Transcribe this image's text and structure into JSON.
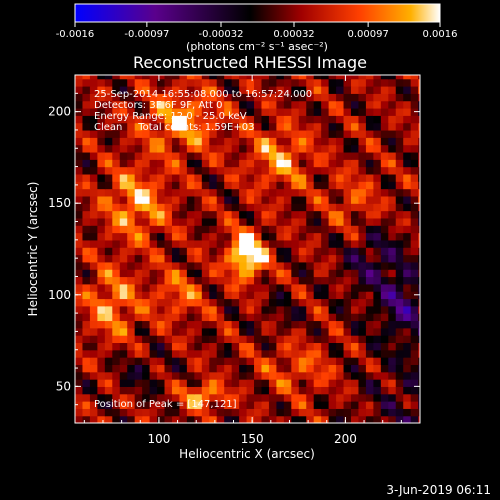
{
  "chart_data": {
    "type": "heatmap",
    "title": "Reconstructed RHESSI Image",
    "xlabel": "Heliocentric X (arcsec)",
    "ylabel": "Heliocentric Y (arcsec)",
    "xlim": [
      55,
      240
    ],
    "ylim": [
      30,
      220
    ],
    "x_ticks": [
      "100",
      "150",
      "200"
    ],
    "x_tick_values": [
      100,
      150,
      200
    ],
    "y_ticks": [
      "50",
      "100",
      "150",
      "200"
    ],
    "y_tick_values": [
      50,
      100,
      150,
      200
    ],
    "colorbar": {
      "ticks": [
        "-0.0016",
        "-0.00097",
        "-0.00032",
        "0.00032",
        "0.00097",
        "0.0016"
      ],
      "tick_values": [
        -0.0016,
        -0.00097,
        -0.00032,
        0.00032,
        0.00097,
        0.0016
      ],
      "range": [
        -0.0016,
        0.0016
      ],
      "units_label": "(photons cm⁻² s⁻¹ asec⁻²)",
      "colors": [
        "#0000ff",
        "#5a008c",
        "#000000",
        "#a00000",
        "#ff4000",
        "#ffb000",
        "#ffffff"
      ]
    },
    "annotations": [
      "25-Sep-2014 16:55:08.000 to 16:57:24.000",
      "Detectors: 3F 6F 9F, Att 0",
      "Energy Range: 12.0 - 25.0 keV",
      "Clean     Total counts: 1.59E+03"
    ],
    "peak_text": "Position of Peak = [147,121]",
    "peak": [
      147,
      121
    ],
    "sources": [
      {
        "x": 147,
        "y": 122,
        "amp": 0.0016,
        "sx": 7,
        "sy": 9
      },
      {
        "x": 124,
        "y": 45,
        "amp": 0.001,
        "sx": 8,
        "sy": 5
      },
      {
        "x": 88,
        "y": 150,
        "amp": 0.0009,
        "sx": 12,
        "sy": 14
      },
      {
        "x": 112,
        "y": 195,
        "amp": 0.0009,
        "sx": 14,
        "sy": 12
      },
      {
        "x": 165,
        "y": 175,
        "amp": 0.0008,
        "sx": 12,
        "sy": 12
      },
      {
        "x": 75,
        "y": 95,
        "amp": 0.0008,
        "sx": 10,
        "sy": 14
      },
      {
        "x": 110,
        "y": 100,
        "amp": 0.0006,
        "sx": 10,
        "sy": 10
      },
      {
        "x": 175,
        "y": 60,
        "amp": 0.0005,
        "sx": 14,
        "sy": 10
      },
      {
        "x": 205,
        "y": 150,
        "amp": 0.0005,
        "sx": 10,
        "sy": 12
      },
      {
        "x": 215,
        "y": 120,
        "amp": -0.0006,
        "sx": 12,
        "sy": 14
      },
      {
        "x": 230,
        "y": 95,
        "amp": -0.0007,
        "sx": 8,
        "sy": 12
      },
      {
        "x": 90,
        "y": 58,
        "amp": -0.0004,
        "sx": 9,
        "sy": 8
      },
      {
        "x": 165,
        "y": 90,
        "amp": -0.0003,
        "sx": 8,
        "sy": 8
      }
    ]
  },
  "footer": {
    "date": "3-Jun-2019 06:11"
  }
}
